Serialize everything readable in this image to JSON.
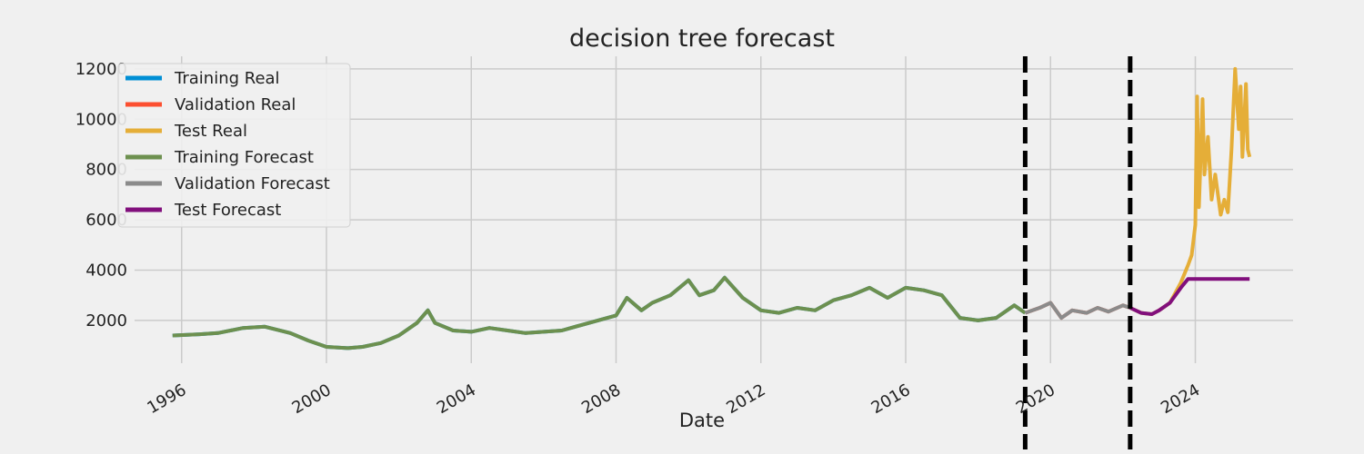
{
  "chart_data": {
    "type": "line",
    "title": "decision tree forecast",
    "xlabel": "Date",
    "ylabel": "",
    "xlim": [
      1994.7,
      2026.7
    ],
    "ylim": [
      300,
      12500
    ],
    "x_ticks": [
      1996,
      2000,
      2004,
      2008,
      2012,
      2016,
      2020,
      2024
    ],
    "y_ticks": [
      2000,
      4000,
      6000,
      8000,
      10000,
      12000
    ],
    "grid": true,
    "legend_position": "top-left",
    "split_markers": [
      2019.3,
      2022.2
    ],
    "series": [
      {
        "name": "Training Real",
        "color": "#008fd5",
        "x": [
          1995.75,
          1996.5,
          1997.0,
          1997.7,
          1998.3,
          1999.0,
          1999.5,
          2000.0,
          2000.6,
          2001.0,
          2001.5,
          2002.0,
          2002.5,
          2002.8,
          2003.0,
          2003.5,
          2004.0,
          2004.5,
          2005.0,
          2005.5,
          2006.0,
          2006.5,
          2007.0,
          2007.5,
          2008.0,
          2008.3,
          2008.7,
          2009.0,
          2009.5,
          2010.0,
          2010.3,
          2010.7,
          2011.0,
          2011.5,
          2012.0,
          2012.5,
          2013.0,
          2013.5,
          2014.0,
          2014.5,
          2015.0,
          2015.5,
          2016.0,
          2016.5,
          2017.0,
          2017.5,
          2018.0,
          2018.5,
          2019.0,
          2019.3
        ],
        "y": [
          1400,
          1450,
          1500,
          1700,
          1750,
          1500,
          1200,
          950,
          900,
          950,
          1100,
          1400,
          1900,
          2400,
          1900,
          1600,
          1550,
          1700,
          1600,
          1500,
          1550,
          1600,
          1800,
          2000,
          2200,
          2900,
          2400,
          2700,
          3000,
          3600,
          3000,
          3200,
          3700,
          2900,
          2400,
          2300,
          2500,
          2400,
          2800,
          3000,
          3300,
          2900,
          3300,
          3200,
          3000,
          2100,
          2000,
          2100,
          2600,
          2300
        ]
      },
      {
        "name": "Validation Real",
        "color": "#fc4f30",
        "x": [
          2019.3,
          2019.7,
          2020.0,
          2020.3,
          2020.6,
          2021.0,
          2021.3,
          2021.6,
          2022.0,
          2022.2
        ],
        "y": [
          2300,
          2500,
          2700,
          2100,
          2400,
          2300,
          2500,
          2350,
          2600,
          2500
        ]
      },
      {
        "name": "Test Real",
        "color": "#e5ae38",
        "x": [
          2022.2,
          2022.5,
          2022.8,
          2023.0,
          2023.3,
          2023.6,
          2023.8,
          2023.9,
          2024.0,
          2024.05,
          2024.1,
          2024.2,
          2024.25,
          2024.35,
          2024.45,
          2024.55,
          2024.7,
          2024.8,
          2024.9,
          2025.0,
          2025.1,
          2025.2,
          2025.25,
          2025.3,
          2025.4,
          2025.45,
          2025.5
        ],
        "y": [
          2500,
          2300,
          2250,
          2400,
          2700,
          3500,
          4200,
          4600,
          5800,
          10900,
          6500,
          10800,
          7800,
          9300,
          6800,
          7800,
          6200,
          6800,
          6300,
          8800,
          12000,
          9600,
          11300,
          8500,
          11400,
          8800,
          8500
        ]
      },
      {
        "name": "Training Forecast",
        "color": "#6d904f",
        "x": [
          1995.75,
          1996.5,
          1997.0,
          1997.7,
          1998.3,
          1999.0,
          1999.5,
          2000.0,
          2000.6,
          2001.0,
          2001.5,
          2002.0,
          2002.5,
          2002.8,
          2003.0,
          2003.5,
          2004.0,
          2004.5,
          2005.0,
          2005.5,
          2006.0,
          2006.5,
          2007.0,
          2007.5,
          2008.0,
          2008.3,
          2008.7,
          2009.0,
          2009.5,
          2010.0,
          2010.3,
          2010.7,
          2011.0,
          2011.5,
          2012.0,
          2012.5,
          2013.0,
          2013.5,
          2014.0,
          2014.5,
          2015.0,
          2015.5,
          2016.0,
          2016.5,
          2017.0,
          2017.5,
          2018.0,
          2018.5,
          2019.0,
          2019.3
        ],
        "y": [
          1400,
          1450,
          1500,
          1700,
          1750,
          1500,
          1200,
          950,
          900,
          950,
          1100,
          1400,
          1900,
          2400,
          1900,
          1600,
          1550,
          1700,
          1600,
          1500,
          1550,
          1600,
          1800,
          2000,
          2200,
          2900,
          2400,
          2700,
          3000,
          3600,
          3000,
          3200,
          3700,
          2900,
          2400,
          2300,
          2500,
          2400,
          2800,
          3000,
          3300,
          2900,
          3300,
          3200,
          3000,
          2100,
          2000,
          2100,
          2600,
          2300
        ]
      },
      {
        "name": "Validation Forecast",
        "color": "#8b8b8b",
        "x": [
          2019.3,
          2019.7,
          2020.0,
          2020.3,
          2020.6,
          2021.0,
          2021.3,
          2021.6,
          2022.0,
          2022.2
        ],
        "y": [
          2300,
          2500,
          2700,
          2100,
          2400,
          2300,
          2500,
          2350,
          2600,
          2500
        ]
      },
      {
        "name": "Test Forecast",
        "color": "#810f7c",
        "x": [
          2022.2,
          2022.5,
          2022.8,
          2023.0,
          2023.3,
          2023.6,
          2023.8,
          2024.0,
          2024.5,
          2025.0,
          2025.5
        ],
        "y": [
          2500,
          2300,
          2250,
          2400,
          2700,
          3300,
          3650,
          3650,
          3650,
          3650,
          3650
        ]
      }
    ]
  }
}
